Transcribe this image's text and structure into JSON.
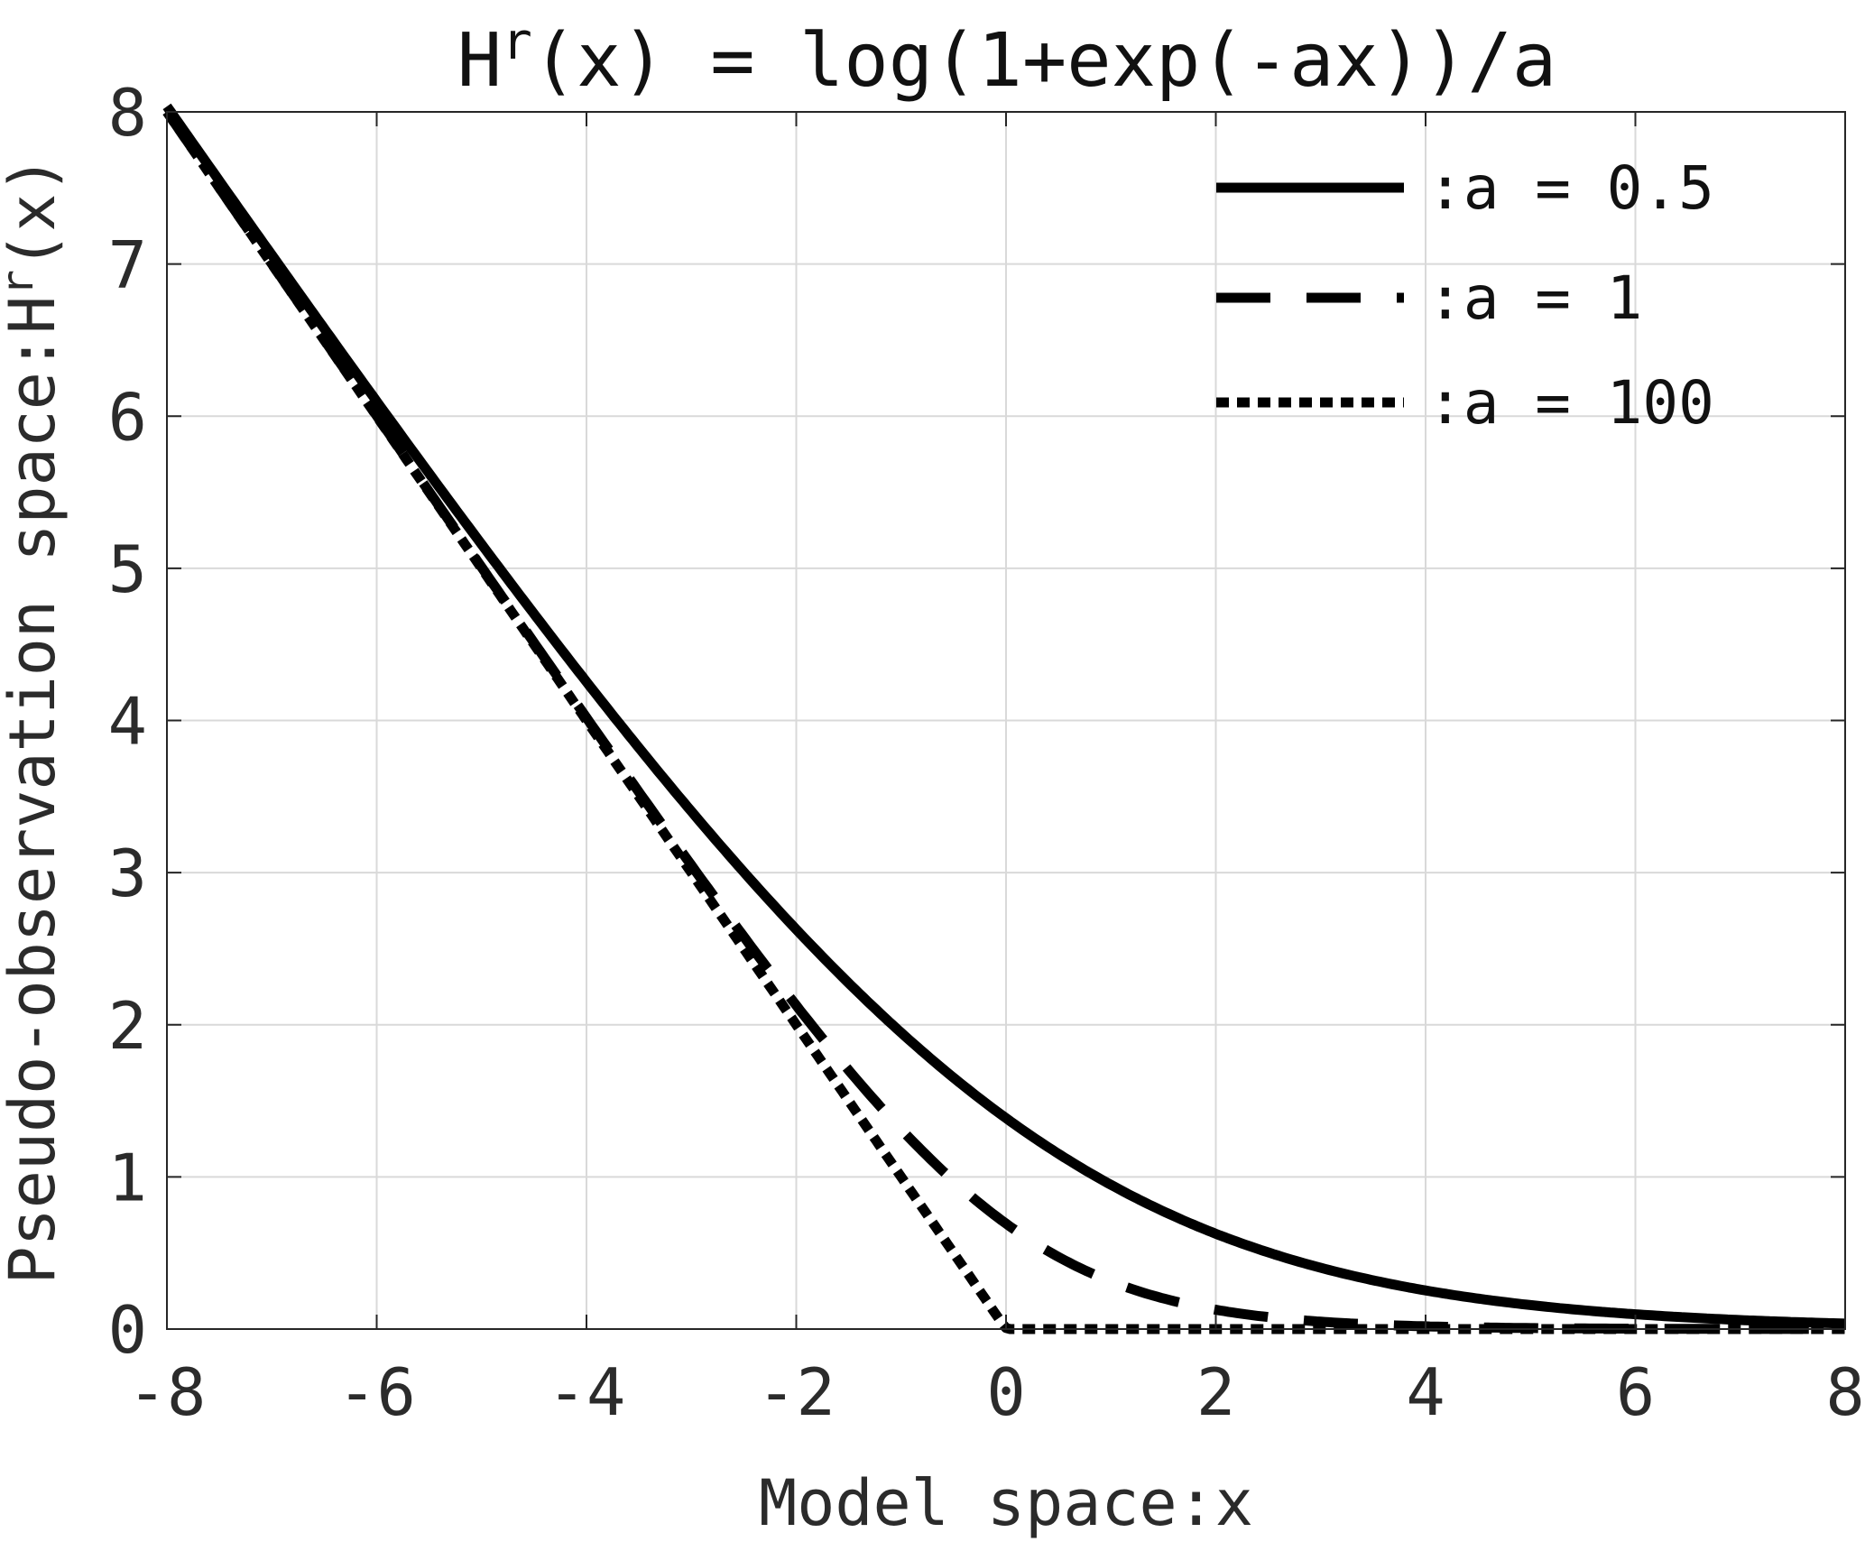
{
  "chart_data": {
    "type": "line",
    "title": {
      "main": "H",
      "superscript": "r",
      "rest": "(x) = log(1+exp(-ax))/a"
    },
    "xlabel": "Model space:x",
    "ylabel": {
      "main": "Pseudo-observation space:H",
      "superscript": "r",
      "rest": "(x)"
    },
    "xlim": [
      -8,
      8
    ],
    "ylim": [
      0,
      8
    ],
    "xticks": [
      "-8",
      "-6",
      "-4",
      "-2",
      "0",
      "2",
      "4",
      "6",
      "8"
    ],
    "yticks": [
      "0",
      "1",
      "2",
      "3",
      "4",
      "5",
      "6",
      "7",
      "8"
    ],
    "grid": true,
    "legend_position": "top-right",
    "series": [
      {
        "name": ":a = 0.5",
        "style": "solid",
        "a": 0.5,
        "x": [
          -8,
          -7,
          -6,
          -5,
          -4,
          -3,
          -2,
          -1,
          0,
          1,
          2,
          3,
          4,
          5,
          6,
          7,
          8
        ],
        "y": [
          8.04,
          7.06,
          6.1,
          5.16,
          4.25,
          3.4,
          2.63,
          1.95,
          1.39,
          0.95,
          0.63,
          0.4,
          0.25,
          0.16,
          0.1,
          0.06,
          0.04
        ]
      },
      {
        "name": ":a = 1",
        "style": "dashed",
        "a": 1,
        "x": [
          -8,
          -7,
          -6,
          -5,
          -4,
          -3,
          -2,
          -1,
          0,
          1,
          2,
          3,
          4,
          5,
          6,
          7,
          8
        ],
        "y": [
          8.0,
          7.0,
          6.0,
          5.01,
          4.02,
          3.05,
          2.13,
          1.31,
          0.69,
          0.31,
          0.13,
          0.05,
          0.02,
          0.01,
          0.0,
          0.0,
          0.0
        ]
      },
      {
        "name": ":a = 100",
        "style": "dotted",
        "a": 100,
        "x": [
          -8,
          -7,
          -6,
          -5,
          -4,
          -3,
          -2,
          -1,
          0,
          1,
          2,
          3,
          4,
          5,
          6,
          7,
          8
        ],
        "y": [
          8,
          7,
          6,
          5,
          4,
          3,
          2,
          1,
          0.01,
          0,
          0,
          0,
          0,
          0,
          0,
          0,
          0
        ]
      }
    ],
    "colors": {
      "line": "#000000",
      "grid": "#d9d9d9",
      "axis": "#262626",
      "text": "#2b2b2b"
    }
  }
}
